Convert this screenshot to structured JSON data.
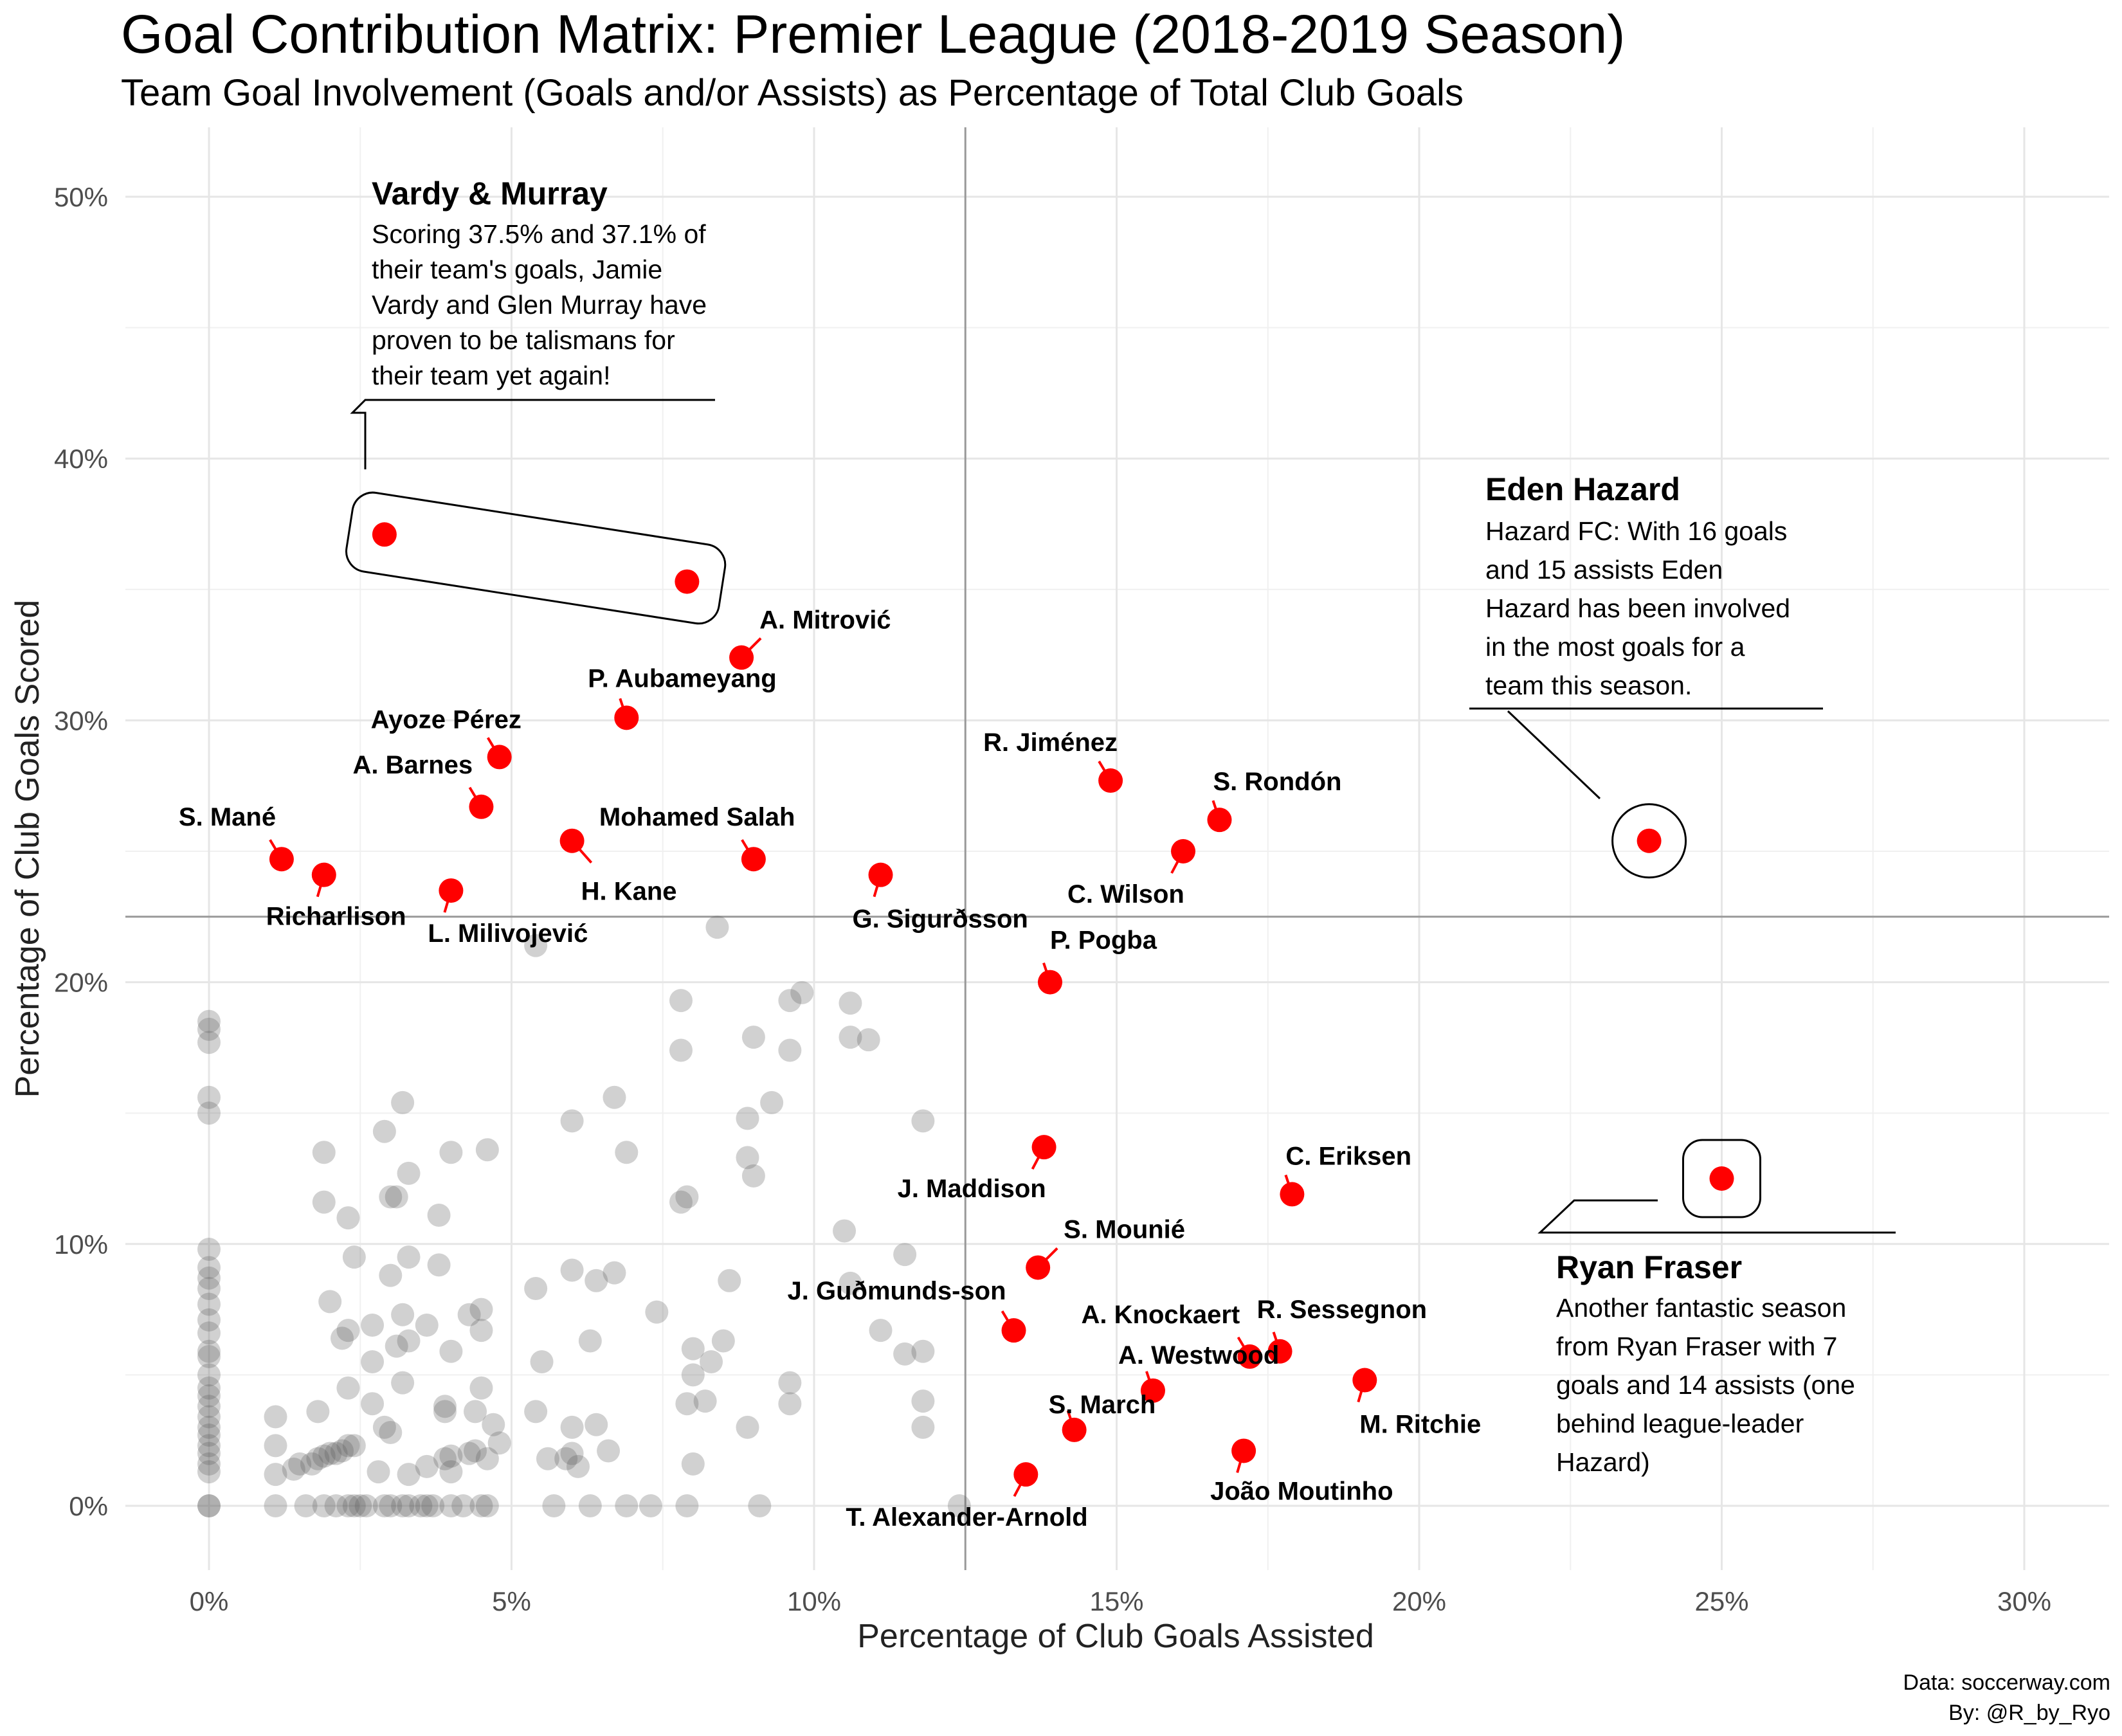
{
  "title": "Goal Contribution Matrix: Premier League (2018-2019 Season)",
  "subtitle": "Team Goal Involvement (Goals and/or Assists) as Percentage of Total Club Goals",
  "caption": [
    "Data: soccerway.com",
    "By: @R_by_Ryo"
  ],
  "colors": {
    "highlight": "#ff0000",
    "background_points": "#595959",
    "reference_line": "#999999"
  },
  "chart_data": {
    "type": "scatter",
    "xlabel": "Percentage of Club Goals Assisted",
    "ylabel": "Percentage of Club Goals Scored",
    "xlim": [
      0,
      30
    ],
    "ylim": [
      0,
      50
    ],
    "x_ticks": [
      "0%",
      "5%",
      "10%",
      "15%",
      "20%",
      "25%",
      "30%"
    ],
    "y_ticks": [
      "0%",
      "10%",
      "20%",
      "30%",
      "40%",
      "50%"
    ],
    "grid": true,
    "reference_lines": {
      "x": 12.5,
      "y": 22.5
    },
    "highlighted": [
      {
        "name": "",
        "x": 2.9,
        "y": 37.1
      },
      {
        "name": "",
        "x": 7.9,
        "y": 35.3
      },
      {
        "name": "A. Mitrović",
        "x": 8.8,
        "y": 32.4
      },
      {
        "name": "P. Aubameyang",
        "x": 6.9,
        "y": 30.1
      },
      {
        "name": "Ayoze Pérez",
        "x": 4.8,
        "y": 28.6
      },
      {
        "name": "A. Barnes",
        "x": 4.5,
        "y": 26.7
      },
      {
        "name": "S. Mané",
        "x": 1.2,
        "y": 24.7
      },
      {
        "name": "Richarlison",
        "x": 1.9,
        "y": 24.1
      },
      {
        "name": "H. Kane",
        "x": 6.0,
        "y": 25.4
      },
      {
        "name": "L. Milivojević",
        "x": 4.0,
        "y": 23.5
      },
      {
        "name": "Mohamed Salah",
        "x": 9.0,
        "y": 24.7
      },
      {
        "name": "G. Sigurðsson",
        "x": 11.1,
        "y": 24.1
      },
      {
        "name": "R. Jiménez",
        "x": 14.9,
        "y": 27.7
      },
      {
        "name": "S. Rondón",
        "x": 16.7,
        "y": 26.2
      },
      {
        "name": "C. Wilson",
        "x": 16.1,
        "y": 25.0
      },
      {
        "name": "P. Pogba",
        "x": 13.9,
        "y": 20.0
      },
      {
        "name": "",
        "x": 23.8,
        "y": 25.4
      },
      {
        "name": "J. Maddison",
        "x": 13.8,
        "y": 13.7
      },
      {
        "name": "C. Eriksen",
        "x": 17.9,
        "y": 11.9
      },
      {
        "name": "",
        "x": 25.0,
        "y": 12.5
      },
      {
        "name": "S. Mounié",
        "x": 13.7,
        "y": 9.1
      },
      {
        "name": "J. Guðmunds-son",
        "x": 13.3,
        "y": 6.7
      },
      {
        "name": "A. Knockaert",
        "x": 17.2,
        "y": 5.7
      },
      {
        "name": "R. Sessegnon",
        "x": 17.7,
        "y": 5.9
      },
      {
        "name": "M. Ritchie",
        "x": 19.1,
        "y": 4.8
      },
      {
        "name": "A. Westwood",
        "x": 15.6,
        "y": 4.4
      },
      {
        "name": "S. March",
        "x": 14.3,
        "y": 2.9
      },
      {
        "name": "João Moutinho",
        "x": 17.1,
        "y": 2.1
      },
      {
        "name": "T. Alexander-Arnold",
        "x": 13.5,
        "y": 1.2
      }
    ],
    "others": [
      [
        0,
        18.5
      ],
      [
        0,
        18.2
      ],
      [
        0,
        17.7
      ],
      [
        0,
        15.6
      ],
      [
        0,
        15.0
      ],
      [
        0,
        9.8
      ],
      [
        0,
        9.1
      ],
      [
        0,
        8.7
      ],
      [
        0,
        8.3
      ],
      [
        0,
        7.7
      ],
      [
        0,
        7.1
      ],
      [
        0,
        6.6
      ],
      [
        0,
        5.9
      ],
      [
        0,
        5.7
      ],
      [
        0,
        5.0
      ],
      [
        0,
        4.5
      ],
      [
        0,
        4.2
      ],
      [
        0,
        3.8
      ],
      [
        0,
        3.4
      ],
      [
        0,
        3.0
      ],
      [
        0,
        2.7
      ],
      [
        0,
        2.3
      ],
      [
        0,
        2.0
      ],
      [
        0,
        1.6
      ],
      [
        0,
        1.3
      ],
      [
        0,
        0
      ],
      [
        0,
        0
      ],
      [
        1.1,
        3.4
      ],
      [
        1.1,
        2.3
      ],
      [
        1.1,
        0
      ],
      [
        1.1,
        1.2
      ],
      [
        1.4,
        1.4
      ],
      [
        1.5,
        1.6
      ],
      [
        1.6,
        0
      ],
      [
        1.7,
        1.6
      ],
      [
        1.8,
        3.6
      ],
      [
        1.8,
        1.8
      ],
      [
        1.9,
        1.9
      ],
      [
        1.9,
        0
      ],
      [
        2.0,
        2.0
      ],
      [
        2.1,
        2.0
      ],
      [
        2.2,
        2.1
      ],
      [
        2.3,
        2.3
      ],
      [
        2.4,
        2.3
      ],
      [
        2.1,
        0
      ],
      [
        2.3,
        0
      ],
      [
        2.4,
        0
      ],
      [
        2.5,
        0
      ],
      [
        2.6,
        0
      ],
      [
        1.9,
        13.5
      ],
      [
        1.9,
        11.6
      ],
      [
        2.3,
        11.0
      ],
      [
        2.0,
        7.8
      ],
      [
        2.3,
        6.7
      ],
      [
        2.2,
        6.4
      ],
      [
        2.3,
        4.5
      ],
      [
        2.4,
        9.5
      ],
      [
        2.7,
        6.9
      ],
      [
        2.7,
        5.5
      ],
      [
        2.7,
        3.9
      ],
      [
        2.8,
        1.3
      ],
      [
        2.9,
        3.0
      ],
      [
        3.0,
        2.8
      ],
      [
        2.9,
        14.3
      ],
      [
        3.0,
        8.8
      ],
      [
        3.1,
        6.1
      ],
      [
        3.2,
        7.3
      ],
      [
        3.3,
        6.3
      ],
      [
        3.1,
        11.8
      ],
      [
        3.0,
        11.8
      ],
      [
        3.2,
        15.4
      ],
      [
        3.2,
        4.7
      ],
      [
        3.3,
        12.7
      ],
      [
        3.3,
        9.5
      ],
      [
        3.3,
        1.2
      ],
      [
        3.6,
        6.9
      ],
      [
        3.6,
        1.5
      ],
      [
        3.7,
        0
      ],
      [
        3.9,
        3.8
      ],
      [
        3.9,
        3.6
      ],
      [
        3.9,
        1.8
      ],
      [
        4.0,
        1.9
      ],
      [
        4.0,
        1.3
      ],
      [
        4.0,
        0
      ],
      [
        4.0,
        13.5
      ],
      [
        4.0,
        5.9
      ],
      [
        3.8,
        11.1
      ],
      [
        3.8,
        9.2
      ],
      [
        3.3,
        0
      ],
      [
        3.0,
        0
      ],
      [
        2.9,
        0
      ],
      [
        3.2,
        0
      ],
      [
        3.5,
        0
      ],
      [
        3.6,
        0
      ],
      [
        4.3,
        2.0
      ],
      [
        4.3,
        7.3
      ],
      [
        4.4,
        2.1
      ],
      [
        4.4,
        3.6
      ],
      [
        4.5,
        4.5
      ],
      [
        4.5,
        6.7
      ],
      [
        4.5,
        7.5
      ],
      [
        4.6,
        13.6
      ],
      [
        4.6,
        0
      ],
      [
        4.7,
        3.1
      ],
      [
        4.6,
        1.8
      ],
      [
        4.8,
        2.4
      ],
      [
        4.2,
        0
      ],
      [
        4.5,
        0
      ],
      [
        5.4,
        21.4
      ],
      [
        5.4,
        8.3
      ],
      [
        5.4,
        3.6
      ],
      [
        5.5,
        5.5
      ],
      [
        5.6,
        1.8
      ],
      [
        5.7,
        0
      ],
      [
        5.9,
        1.8
      ],
      [
        6.0,
        3.0
      ],
      [
        6.0,
        2.0
      ],
      [
        6.0,
        14.7
      ],
      [
        6.0,
        9.0
      ],
      [
        6.1,
        1.5
      ],
      [
        6.3,
        0
      ],
      [
        6.3,
        6.3
      ],
      [
        6.4,
        3.1
      ],
      [
        6.4,
        8.6
      ],
      [
        6.6,
        2.1
      ],
      [
        6.7,
        15.6
      ],
      [
        6.7,
        8.9
      ],
      [
        6.9,
        0
      ],
      [
        6.9,
        13.5
      ],
      [
        7.3,
        0
      ],
      [
        7.4,
        7.4
      ],
      [
        7.8,
        11.6
      ],
      [
        7.8,
        17.4
      ],
      [
        7.8,
        19.3
      ],
      [
        7.9,
        11.8
      ],
      [
        7.9,
        3.9
      ],
      [
        7.9,
        0
      ],
      [
        8.0,
        6.0
      ],
      [
        8.0,
        5.0
      ],
      [
        8.0,
        1.6
      ],
      [
        8.2,
        4.0
      ],
      [
        8.3,
        5.5
      ],
      [
        8.4,
        22.1
      ],
      [
        8.5,
        6.3
      ],
      [
        8.6,
        8.6
      ],
      [
        8.9,
        3.0
      ],
      [
        8.9,
        14.8
      ],
      [
        8.9,
        13.3
      ],
      [
        9.0,
        12.6
      ],
      [
        9.0,
        17.9
      ],
      [
        9.1,
        0
      ],
      [
        9.3,
        15.4
      ],
      [
        9.6,
        17.4
      ],
      [
        9.6,
        19.3
      ],
      [
        9.6,
        4.7
      ],
      [
        9.6,
        3.9
      ],
      [
        9.8,
        19.6
      ],
      [
        10.5,
        10.5
      ],
      [
        10.6,
        8.5
      ],
      [
        10.6,
        17.9
      ],
      [
        10.6,
        19.2
      ],
      [
        10.9,
        17.8
      ],
      [
        11.1,
        6.7
      ],
      [
        11.5,
        5.8
      ],
      [
        11.5,
        9.6
      ],
      [
        11.8,
        14.7
      ],
      [
        11.8,
        5.9
      ],
      [
        11.8,
        4.0
      ],
      [
        11.8,
        3.0
      ],
      [
        12.4,
        0
      ]
    ],
    "annotations": [
      {
        "title": "Vardy & Murray",
        "lines": [
          "Scoring 37.5% and 37.1% of",
          "their team's goals, Jamie",
          "Vardy and Glen Murray have",
          "proven to be talismans for",
          "their team yet again!"
        ]
      },
      {
        "title": "Eden Hazard",
        "lines": [
          "Hazard FC: With 16 goals",
          "and 15 assists Eden",
          "Hazard has been involved",
          "in the most goals for a",
          "team this season."
        ]
      },
      {
        "title": "Ryan Fraser",
        "lines": [
          "Another fantastic season",
          "from Ryan Fraser with 7",
          "goals and 14 assists (one",
          "behind league-leader",
          "Hazard)"
        ]
      }
    ]
  }
}
